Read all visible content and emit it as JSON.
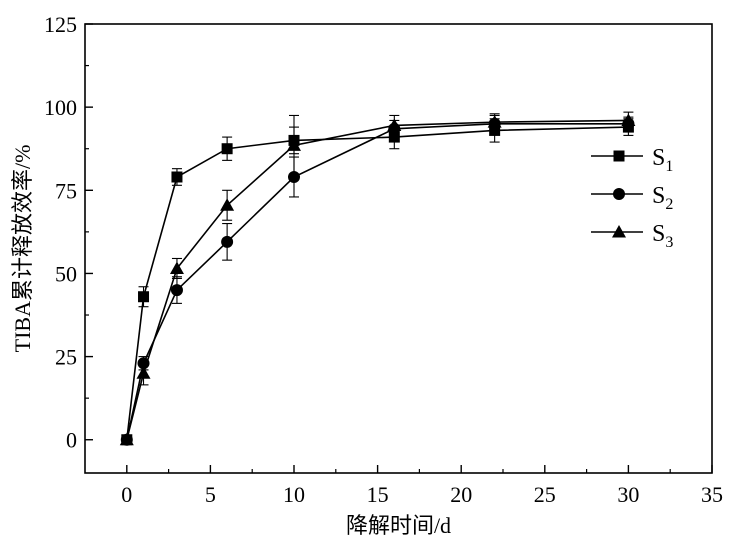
{
  "chart_data": {
    "type": "line",
    "xlabel": "降解时间/d",
    "ylabel": "TIBA累计释放效率/%",
    "xlim": [
      -2.5,
      35
    ],
    "ylim": [
      -10,
      125
    ],
    "x_ticks": [
      0,
      5,
      10,
      15,
      20,
      25,
      30,
      35
    ],
    "y_ticks": [
      0,
      25,
      50,
      75,
      100,
      125
    ],
    "x_tick_labels": [
      "0",
      "5",
      "10",
      "15",
      "20",
      "25",
      "30",
      "35"
    ],
    "y_tick_labels": [
      "0",
      "25",
      "50",
      "75",
      "100",
      "125"
    ],
    "grid": false,
    "legend_position": "right-middle",
    "x": [
      0,
      1,
      3,
      6,
      10,
      16,
      22,
      30
    ],
    "series": [
      {
        "name": "S1",
        "name_base": "S",
        "name_sub": "1",
        "marker": "square",
        "values": [
          0,
          43,
          79,
          87.5,
          90,
          91,
          93,
          94
        ],
        "errors": [
          0,
          3,
          2.5,
          3.5,
          4,
          3.5,
          3.5,
          2.5
        ]
      },
      {
        "name": "S2",
        "name_base": "S",
        "name_sub": "2",
        "marker": "circle",
        "values": [
          0,
          23,
          45,
          59.5,
          79,
          93.5,
          95,
          95
        ],
        "errors": [
          0,
          2,
          4,
          5.5,
          6,
          2.5,
          2.5,
          2
        ]
      },
      {
        "name": "S3",
        "name_base": "S",
        "name_sub": "3",
        "marker": "triangle",
        "values": [
          0,
          20,
          51.5,
          70.5,
          88.5,
          94.5,
          95.5,
          96
        ],
        "errors": [
          0,
          3.5,
          3,
          4.5,
          9,
          3,
          2.5,
          2.5
        ]
      }
    ]
  }
}
